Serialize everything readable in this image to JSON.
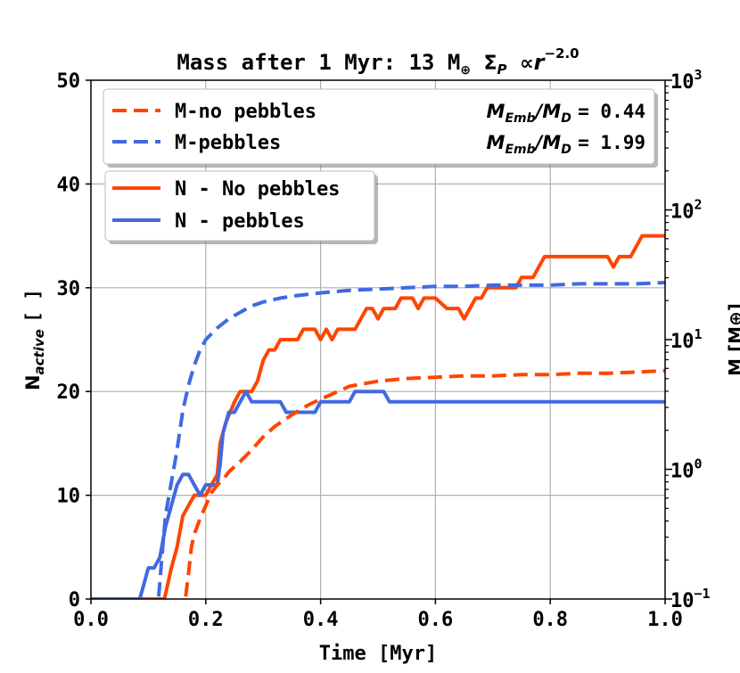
{
  "chart_data": {
    "type": "line",
    "title_main": "Mass after 1 Myr: 13 M",
    "title_earth": "⊕",
    "title_sigma": "Σ",
    "title_sub_p": "P",
    "title_prop": "∝",
    "title_r": "r",
    "title_exp": "−2.0",
    "xlabel": "Time [Myr]",
    "ylabel_main": "N",
    "ylabel_sub": "active",
    "ylabel_unit": "[ ]",
    "y2label": "M [M⊕]",
    "xlim": [
      0.0,
      1.0
    ],
    "ylim": [
      0,
      50
    ],
    "y2lim_log10": [
      -1,
      3
    ],
    "grid": true,
    "x_ticks": [
      {
        "v": 0.0,
        "label": "0.0"
      },
      {
        "v": 0.2,
        "label": "0.2"
      },
      {
        "v": 0.4,
        "label": "0.4"
      },
      {
        "v": 0.6,
        "label": "0.6"
      },
      {
        "v": 0.8,
        "label": "0.8"
      },
      {
        "v": 1.0,
        "label": "1.0"
      }
    ],
    "y_ticks": [
      {
        "v": 0,
        "label": "0"
      },
      {
        "v": 10,
        "label": "10"
      },
      {
        "v": 20,
        "label": "20"
      },
      {
        "v": 30,
        "label": "30"
      },
      {
        "v": 40,
        "label": "40"
      },
      {
        "v": 50,
        "label": "50"
      }
    ],
    "y2_ticks": [
      {
        "e": -1,
        "base": "10",
        "exp": "−1"
      },
      {
        "e": 0,
        "base": "10",
        "exp": "0"
      },
      {
        "e": 1,
        "base": "10",
        "exp": "1"
      },
      {
        "e": 2,
        "base": "10",
        "exp": "2"
      },
      {
        "e": 3,
        "base": "10",
        "exp": "3"
      }
    ],
    "legend_mass": [
      {
        "name": "M-no pebbles",
        "color": "#ff4500",
        "dash": true,
        "ratio_prefix": "M",
        "ratio_sub1": "Emb",
        "ratio_mid": "/M",
        "ratio_sub2": "D",
        "ratio_value": "= 0.44"
      },
      {
        "name": "M-pebbles",
        "color": "#4169e1",
        "dash": true,
        "ratio_prefix": "M",
        "ratio_sub1": "Emb",
        "ratio_mid": "/M",
        "ratio_sub2": "D",
        "ratio_value": "= 1.99"
      }
    ],
    "legend_count": [
      {
        "name": "N - No pebbles",
        "color": "#ff4500"
      },
      {
        "name": "N - pebbles",
        "color": "#4169e1"
      }
    ],
    "series": [
      {
        "name": "N - No pebbles",
        "axis": "left",
        "style": "solid",
        "color": "#ff4500",
        "x": [
          0.0,
          0.128,
          0.132,
          0.14,
          0.15,
          0.16,
          0.17,
          0.18,
          0.2,
          0.21,
          0.22,
          0.225,
          0.235,
          0.25,
          0.26,
          0.27,
          0.28,
          0.29,
          0.3,
          0.31,
          0.32,
          0.33,
          0.34,
          0.36,
          0.37,
          0.38,
          0.39,
          0.4,
          0.41,
          0.42,
          0.43,
          0.44,
          0.45,
          0.46,
          0.47,
          0.48,
          0.49,
          0.5,
          0.51,
          0.52,
          0.53,
          0.54,
          0.55,
          0.56,
          0.57,
          0.58,
          0.6,
          0.62,
          0.63,
          0.64,
          0.65,
          0.66,
          0.67,
          0.68,
          0.69,
          0.7,
          0.72,
          0.74,
          0.75,
          0.76,
          0.77,
          0.78,
          0.79,
          0.8,
          0.85,
          0.88,
          0.9,
          0.91,
          0.92,
          0.93,
          0.94,
          0.95,
          0.96,
          0.97,
          1.0
        ],
        "y": [
          0,
          0,
          1,
          3,
          5,
          8,
          9,
          10,
          10,
          11,
          12,
          15,
          17,
          19,
          20,
          20,
          20,
          21,
          23,
          24,
          24,
          25,
          25,
          25,
          26,
          26,
          26,
          25,
          26,
          25,
          26,
          26,
          26,
          26,
          27,
          28,
          28,
          27,
          28,
          28,
          28,
          29,
          29,
          29,
          28,
          29,
          29,
          28,
          28,
          28,
          27,
          28,
          29,
          29,
          30,
          30,
          30,
          30,
          31,
          31,
          31,
          32,
          33,
          33,
          33,
          33,
          33,
          32,
          33,
          33,
          33,
          34,
          35,
          35,
          35
        ]
      },
      {
        "name": "N - pebbles",
        "axis": "left",
        "style": "solid",
        "color": "#4169e1",
        "x": [
          0.0,
          0.085,
          0.09,
          0.1,
          0.11,
          0.12,
          0.13,
          0.14,
          0.15,
          0.16,
          0.17,
          0.18,
          0.19,
          0.2,
          0.21,
          0.22,
          0.225,
          0.23,
          0.24,
          0.25,
          0.26,
          0.27,
          0.28,
          0.3,
          0.32,
          0.33,
          0.34,
          0.36,
          0.38,
          0.39,
          0.4,
          0.42,
          0.44,
          0.45,
          0.46,
          0.48,
          0.5,
          0.51,
          0.52,
          0.53,
          1.0
        ],
        "y": [
          0,
          0,
          1,
          3,
          3,
          4,
          7,
          9,
          11,
          12,
          12,
          11,
          10,
          11,
          11,
          11,
          13,
          16,
          18,
          18,
          19,
          20,
          19,
          19,
          19,
          19,
          18,
          18,
          18,
          18,
          19,
          19,
          19,
          19,
          20,
          20,
          20,
          20,
          19,
          19,
          19
        ]
      },
      {
        "name": "M-no pebbles",
        "axis": "right",
        "style": "dashed",
        "color": "#ff4500",
        "x": [
          0.165,
          0.17,
          0.175,
          0.18,
          0.19,
          0.2,
          0.21,
          0.22,
          0.23,
          0.24,
          0.26,
          0.28,
          0.3,
          0.32,
          0.35,
          0.38,
          0.4,
          0.42,
          0.45,
          0.5,
          0.55,
          0.6,
          0.65,
          0.7,
          0.75,
          0.8,
          0.85,
          0.9,
          0.95,
          1.0
        ],
        "log10": [
          -0.98,
          -0.8,
          -0.6,
          -0.5,
          -0.38,
          -0.28,
          -0.18,
          -0.12,
          -0.08,
          -0.02,
          0.06,
          0.15,
          0.25,
          0.33,
          0.42,
          0.5,
          0.54,
          0.58,
          0.64,
          0.68,
          0.7,
          0.71,
          0.72,
          0.72,
          0.73,
          0.73,
          0.74,
          0.74,
          0.75,
          0.76
        ]
      },
      {
        "name": "M-pebbles",
        "axis": "right",
        "style": "dashed",
        "color": "#4169e1",
        "x": [
          0.118,
          0.125,
          0.13,
          0.14,
          0.15,
          0.16,
          0.17,
          0.18,
          0.19,
          0.2,
          0.22,
          0.24,
          0.26,
          0.28,
          0.3,
          0.33,
          0.36,
          0.4,
          0.45,
          0.5,
          0.55,
          0.6,
          0.65,
          0.7,
          0.75,
          0.8,
          0.85,
          0.9,
          0.95,
          1.0
        ],
        "log10": [
          -0.98,
          -0.6,
          -0.35,
          -0.1,
          0.15,
          0.45,
          0.65,
          0.8,
          0.92,
          1.0,
          1.09,
          1.16,
          1.21,
          1.26,
          1.29,
          1.32,
          1.34,
          1.36,
          1.38,
          1.39,
          1.4,
          1.41,
          1.41,
          1.42,
          1.42,
          1.42,
          1.43,
          1.43,
          1.43,
          1.44
        ]
      }
    ]
  }
}
